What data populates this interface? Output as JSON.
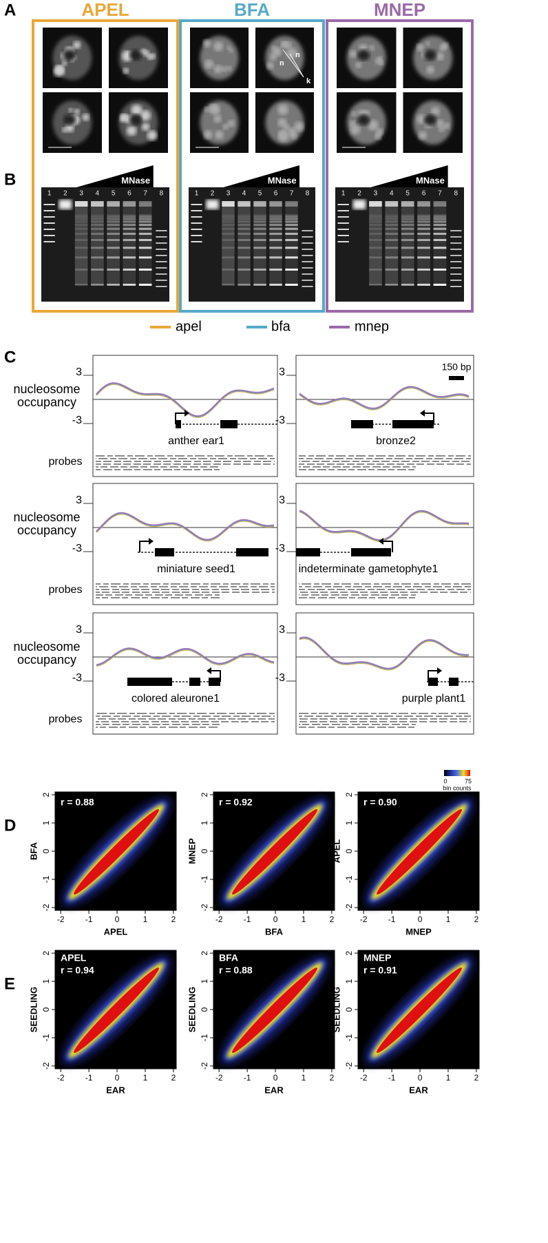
{
  "panel_labels": [
    "A",
    "B",
    "C",
    "D",
    "E"
  ],
  "panel_a": {
    "columns": [
      {
        "title": "APEL",
        "color": "#e9a73a"
      },
      {
        "title": "BFA",
        "color": "#56a9c9"
      },
      {
        "title": "MNEP",
        "color": "#9a6aa9"
      }
    ],
    "nucleus_labels": [
      "n",
      "n",
      "k"
    ]
  },
  "panel_b": {
    "lanes": [
      1,
      2,
      3,
      4,
      5,
      6,
      7,
      8
    ],
    "treatment": "MNase"
  },
  "legend": [
    {
      "name": "apel",
      "color": "#e9a73a"
    },
    {
      "name": "bfa",
      "color": "#56a9c9"
    },
    {
      "name": "mnep",
      "color": "#9a6aa9"
    }
  ],
  "panel_c": {
    "yticks": [
      3,
      -3
    ],
    "y_label": [
      "nucleosome",
      "occupancy"
    ],
    "probes_label": "probes",
    "scale_bar": "150 bp",
    "genes": [
      "anther ear1",
      "bronze2",
      "miniature seed1",
      "indeterminate gametophyte1",
      "colored aleurone1",
      "purple plant1"
    ]
  },
  "panel_d": {
    "plots": [
      {
        "x_label": "APEL",
        "y_label": "BFA",
        "r_label": "r = 0.88"
      },
      {
        "x_label": "BFA",
        "y_label": "MNEP",
        "r_label": "r = 0.92"
      },
      {
        "x_label": "MNEP",
        "y_label": "APEL",
        "r_label": "r = 0.90"
      }
    ]
  },
  "panel_e": {
    "plots": [
      {
        "sample": "APEL",
        "x_label": "EAR",
        "y_label": "SEEDLING",
        "r_label": "r = 0.94"
      },
      {
        "sample": "BFA",
        "x_label": "EAR",
        "y_label": "SEEDLING",
        "r_label": "r = 0.88"
      },
      {
        "sample": "MNEP",
        "x_label": "EAR",
        "y_label": "SEEDLING",
        "r_label": "r = 0.91"
      }
    ]
  },
  "scatter_axes": {
    "xlim": [
      -2.2,
      2.1
    ],
    "ylim": [
      -2.1,
      2.1
    ],
    "ticks": [
      -2,
      -1,
      0,
      1,
      2
    ]
  },
  "colorbar": {
    "range": [
      0,
      75
    ],
    "label": "bin counts"
  }
}
